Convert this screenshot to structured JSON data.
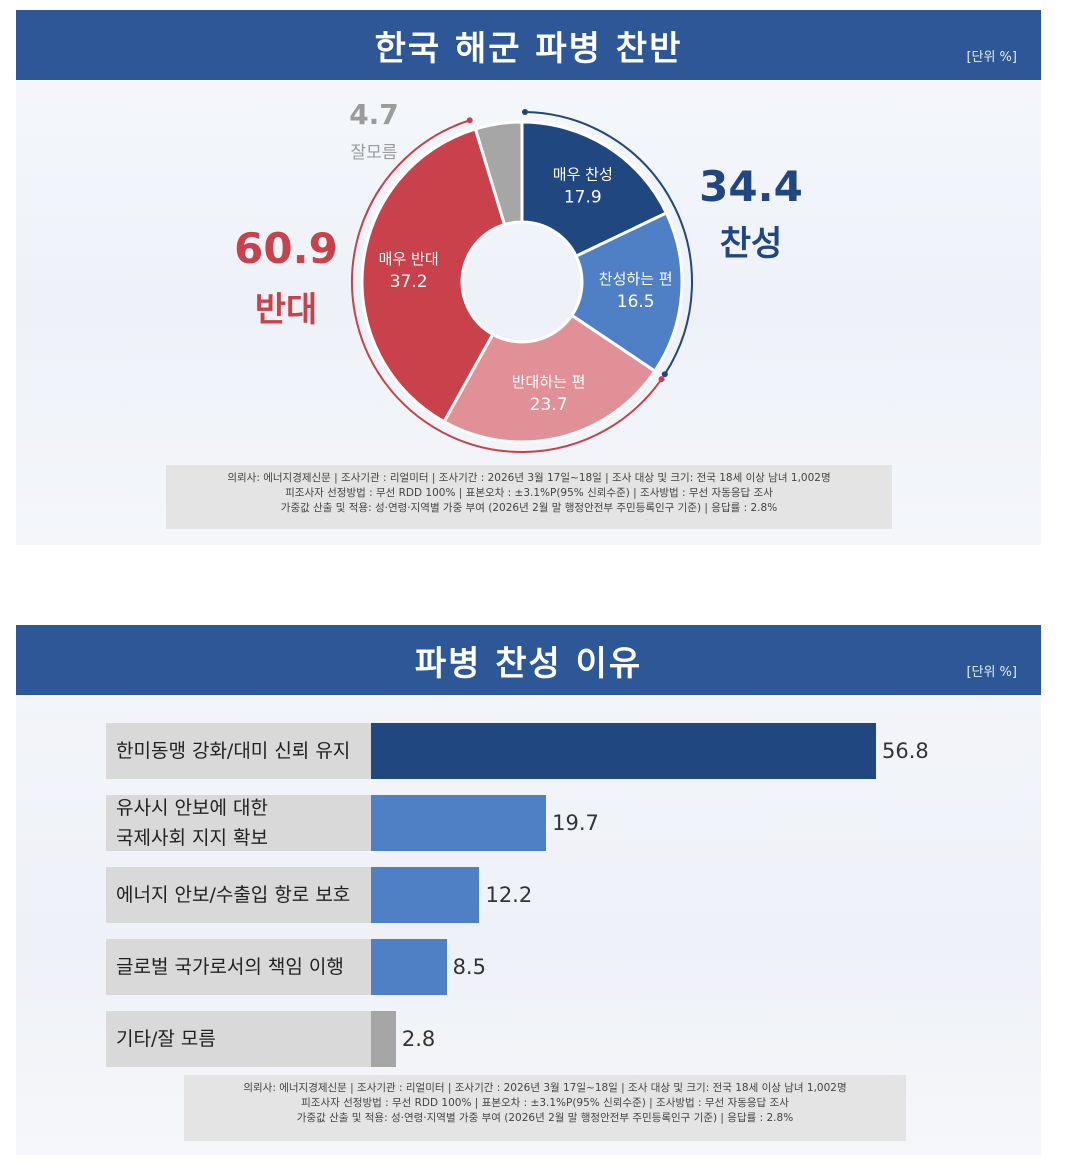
{
  "pie_panel": {
    "title": "한국 해군 파병 찬반",
    "unit": "[단위 %]",
    "groups": {
      "favor": {
        "value": "34.4",
        "label": "찬성",
        "color": "#20477f"
      },
      "oppose": {
        "value": "60.9",
        "label": "반대",
        "color": "#c9414a"
      },
      "unknown": {
        "value": "4.7",
        "label": "잘모름",
        "color": "#a6a6a6"
      }
    },
    "footnote": [
      "의뢰사: 에너지경제신문 | 조사기관 : 리얼미터 | 조사기간 : 2026년 3월 17일~18일 | 조사 대상 및 크기: 전국 18세 이상 남녀 1,002명",
      "피조사자 선정방법 : 무선 RDD 100% | 표본오차 : ±3.1%P(95% 신뢰수준) | 조사방법 : 무선 자동응답 조사",
      "가중값 산출 및 적용: 성·연령·지역별 가중 부여 (2026년 2월 말 행정안전부 주민등록인구 기준) | 응답률 : 2.8%"
    ]
  },
  "bar_panel": {
    "title": "파병 찬성 이유",
    "unit": "[단위 %]",
    "footnote": [
      "의뢰사: 에너지경제신문 | 조사기관 : 리얼미터 | 조사기간 : 2026년 3월 17일~18일 | 조사 대상 및 크기: 전국 18세 이상 남녀 1,002명",
      "피조사자 선정방법 : 무선 RDD 100% | 표본오차 : ±3.1%P(95% 신뢰수준) | 조사방법 : 무선 자동응답 조사",
      "가중값 산출 및 적용: 성·연령·지역별 가중 부여 (2026년 2월 말 행정안전부 주민등록인구 기준) | 응답률 : 2.8%"
    ]
  },
  "chart_data": [
    {
      "type": "pie",
      "title": "한국 해군 파병 찬반",
      "donut": true,
      "slices": [
        {
          "label": "매우 찬성",
          "value": 17.9,
          "color": "#20477f"
        },
        {
          "label": "찬성하는 편",
          "value": 16.5,
          "color": "#4f7fc4"
        },
        {
          "label": "반대하는 편",
          "value": 23.7,
          "color": "#e29097"
        },
        {
          "label": "매우 반대",
          "value": 37.2,
          "color": "#c9414a"
        },
        {
          "label": "",
          "value": 4.7,
          "color": "#a6a6a6"
        }
      ]
    },
    {
      "type": "bar",
      "orientation": "horizontal",
      "title": "파병 찬성 이유",
      "categories": [
        [
          "한미동맹 강화/대미 신뢰 유지"
        ],
        [
          "유사시 안보에 대한",
          "국제사회 지지 확보"
        ],
        [
          "에너지 안보/수출입 항로 보호"
        ],
        [
          "글로벌 국가로서의 책임 이행"
        ],
        [
          "기타/잘 모름"
        ]
      ],
      "values": [
        56.8,
        19.7,
        12.2,
        8.5,
        2.8
      ],
      "colors": [
        "#20477f",
        "#4f7fc4",
        "#4f7fc4",
        "#4f7fc4",
        "#a6a6a6"
      ]
    }
  ]
}
